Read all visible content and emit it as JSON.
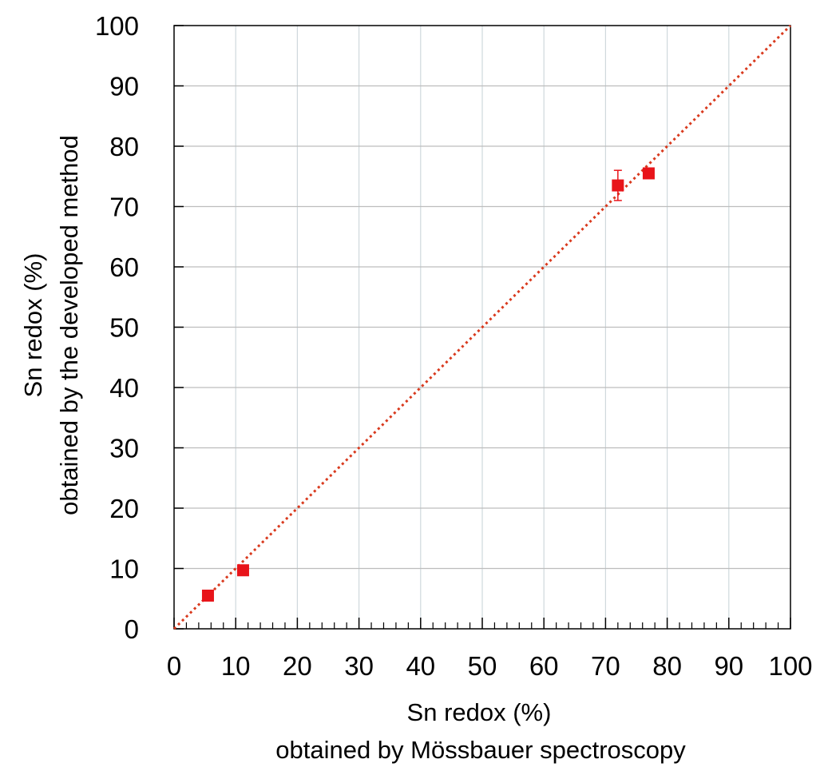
{
  "chart_data": {
    "type": "scatter",
    "xlabel": [
      "Sn redox (%)",
      "obtained by Mössbauer spectroscopy"
    ],
    "ylabel": [
      "Sn redox (%)",
      "obtained by the developed method"
    ],
    "xlim": [
      0,
      100
    ],
    "ylim": [
      0,
      100
    ],
    "x_major_ticks": [
      0,
      10,
      20,
      30,
      40,
      50,
      60,
      70,
      80,
      90,
      100
    ],
    "y_major_ticks": [
      0,
      10,
      20,
      30,
      40,
      50,
      60,
      70,
      80,
      90,
      100
    ],
    "x_tick_labels": [
      "0",
      "10",
      "20",
      "30",
      "40",
      "50",
      "60",
      "70",
      "80",
      "90",
      "100"
    ],
    "y_tick_labels": [
      "0",
      "10",
      "20",
      "30",
      "40",
      "50",
      "60",
      "70",
      "80",
      "90",
      "100"
    ],
    "x_minor_tick_step": 2,
    "grid": true,
    "series": [
      {
        "marker": "square",
        "color": "#e8141a",
        "points": [
          {
            "x": 5.5,
            "y": 5.5
          },
          {
            "x": 11.2,
            "y": 9.7
          },
          {
            "x": 72.0,
            "y": 73.5,
            "yerr": 2.5
          },
          {
            "x": 77.0,
            "y": 75.5,
            "yerr": 0.7
          }
        ]
      }
    ],
    "reference_line": {
      "style": "dotted",
      "color": "#d93a1e",
      "from": [
        0,
        0
      ],
      "to": [
        100,
        100
      ]
    }
  }
}
